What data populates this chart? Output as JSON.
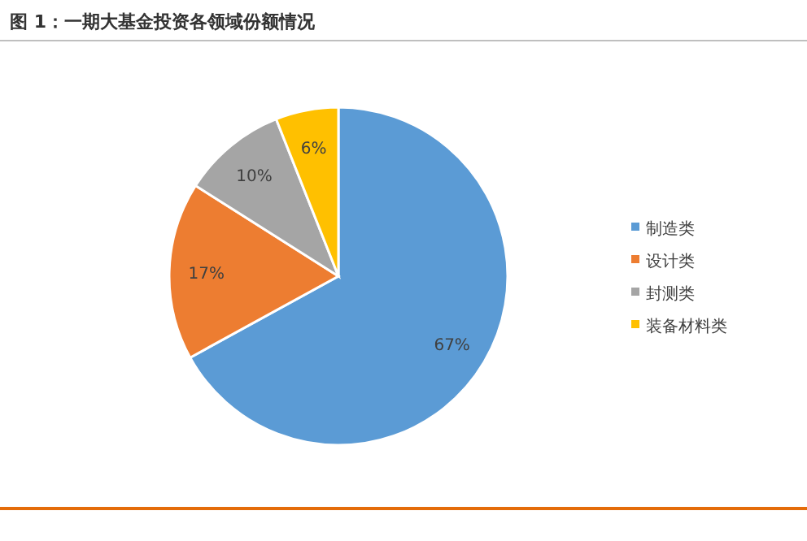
{
  "chart_data": {
    "type": "pie",
    "title": "图 1：一期大基金投资各领域份额情况",
    "categories": [
      "制造类",
      "设计类",
      "封测类",
      "装备材料类"
    ],
    "values": [
      67,
      17,
      10,
      6
    ],
    "colors": [
      "#5b9bd5",
      "#ed7d31",
      "#a5a5a5",
      "#ffc000"
    ],
    "value_labels": [
      "67%",
      "17%",
      "10%",
      "6%"
    ],
    "legend": "right"
  }
}
